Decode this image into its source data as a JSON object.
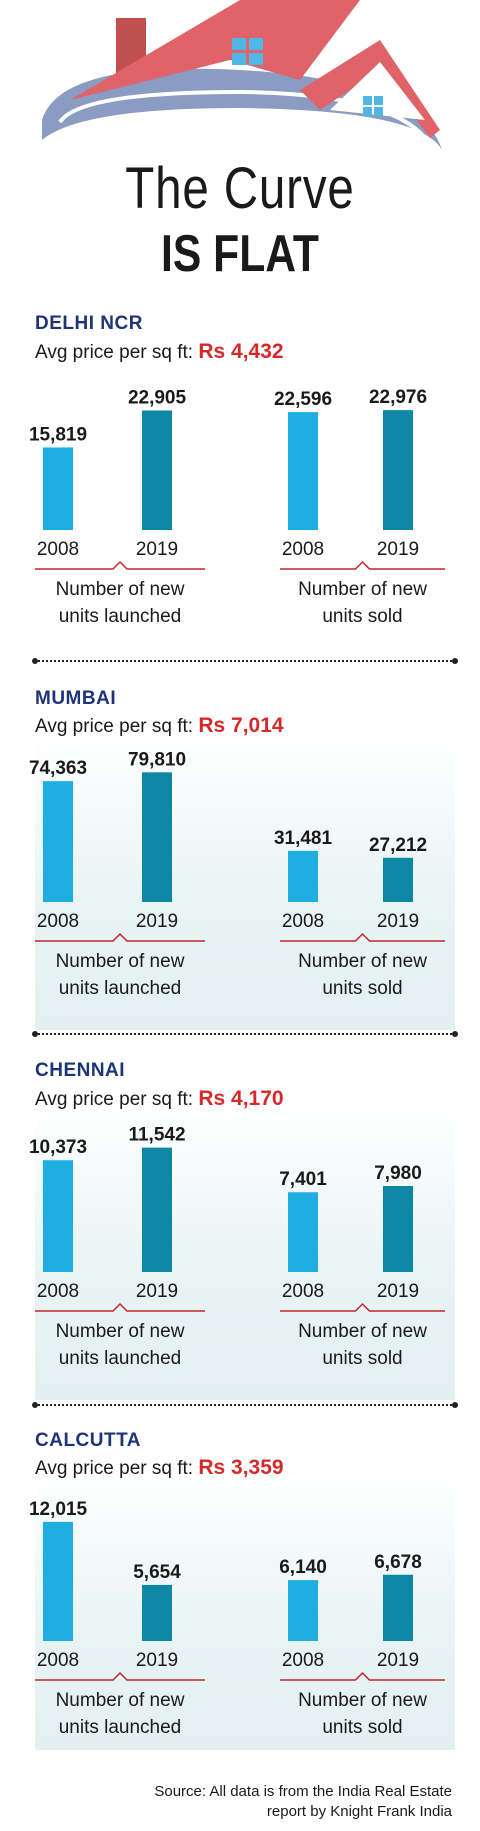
{
  "header": {
    "title_line1": "The Curve",
    "title_line2": "IS FLAT"
  },
  "colors": {
    "bar_2008": "#1eaee2",
    "bar_2019": "#0e86a6",
    "city": "#1e3478",
    "price": "#d62a2a",
    "underline": "#c0262d",
    "roof": "#e0636a",
    "chimney": "#c0504d",
    "window": "#4fb6e6",
    "arc": "#8a9cc2"
  },
  "common": {
    "avg_label": "Avg price per sq ft:",
    "launched_label_1": "Number of new",
    "launched_label_2": "units launched",
    "sold_label_1": "Number of new",
    "sold_label_2": "units sold"
  },
  "chart_data": [
    {
      "type": "bar",
      "title": "DELHI NCR",
      "avg_price": "Rs 4,432",
      "groups": [
        {
          "name": "Number of new units launched",
          "categories": [
            "2008",
            "2019"
          ],
          "values": [
            15819,
            22905
          ],
          "labels": [
            "15,819",
            "22,905"
          ]
        },
        {
          "name": "Number of new units sold",
          "categories": [
            "2008",
            "2019"
          ],
          "values": [
            22596,
            22976
          ],
          "labels": [
            "22,596",
            "22,976"
          ]
        }
      ]
    },
    {
      "type": "bar",
      "title": "MUMBAI",
      "avg_price": "Rs 7,014",
      "groups": [
        {
          "name": "Number of new units launched",
          "categories": [
            "2008",
            "2019"
          ],
          "values": [
            74363,
            79810
          ],
          "labels": [
            "74,363",
            "79,810"
          ]
        },
        {
          "name": "Number of new units sold",
          "categories": [
            "2008",
            "2019"
          ],
          "values": [
            31481,
            27212
          ],
          "labels": [
            "31,481",
            "27,212"
          ]
        }
      ]
    },
    {
      "type": "bar",
      "title": "CHENNAI",
      "avg_price": "Rs 4,170",
      "groups": [
        {
          "name": "Number of new units launched",
          "categories": [
            "2008",
            "2019"
          ],
          "values": [
            10373,
            11542
          ],
          "labels": [
            "10,373",
            "11,542"
          ]
        },
        {
          "name": "Number of new units sold",
          "categories": [
            "2008",
            "2019"
          ],
          "values": [
            7401,
            7980
          ],
          "labels": [
            "7,401",
            "7,980"
          ]
        }
      ]
    },
    {
      "type": "bar",
      "title": "CALCUTTA",
      "avg_price": "Rs 3,359",
      "groups": [
        {
          "name": "Number of new units launched",
          "categories": [
            "2008",
            "2019"
          ],
          "values": [
            12015,
            5654
          ],
          "labels": [
            "12,015",
            "5,654"
          ]
        },
        {
          "name": "Number of new units sold",
          "categories": [
            "2008",
            "2019"
          ],
          "values": [
            6140,
            6678
          ],
          "labels": [
            "6,140",
            "6,678"
          ]
        }
      ]
    }
  ],
  "footer": {
    "source_line1": "Source: All data is from the India Real Estate",
    "source_line2": "report by Knight Frank India"
  }
}
